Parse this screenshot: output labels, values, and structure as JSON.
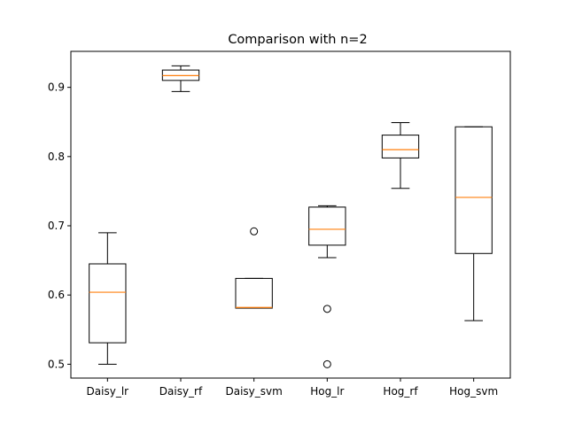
{
  "chart_data": {
    "type": "boxplot",
    "title": "Comparison with n=2",
    "xlabel": "",
    "ylabel": "",
    "categories": [
      "Daisy_lr",
      "Daisy_rf",
      "Daisy_svm",
      "Hog_lr",
      "Hog_rf",
      "Hog_svm"
    ],
    "boxes": [
      {
        "whisker_low": 0.5,
        "q1": 0.531,
        "median": 0.604,
        "q3": 0.645,
        "whisker_high": 0.69,
        "outliers": []
      },
      {
        "whisker_low": 0.894,
        "q1": 0.91,
        "median": 0.917,
        "q3": 0.925,
        "whisker_high": 0.931,
        "outliers": []
      },
      {
        "whisker_low": 0.581,
        "q1": 0.581,
        "median": 0.582,
        "q3": 0.624,
        "whisker_high": 0.624,
        "outliers": [
          0.692
        ]
      },
      {
        "whisker_low": 0.654,
        "q1": 0.672,
        "median": 0.695,
        "q3": 0.727,
        "whisker_high": 0.729,
        "outliers": [
          0.58,
          0.5
        ]
      },
      {
        "whisker_low": 0.754,
        "q1": 0.798,
        "median": 0.81,
        "q3": 0.831,
        "whisker_high": 0.849,
        "outliers": []
      },
      {
        "whisker_low": 0.563,
        "q1": 0.66,
        "median": 0.741,
        "q3": 0.843,
        "whisker_high": 0.843,
        "outliers": []
      }
    ],
    "ylim": [
      0.48,
      0.952
    ],
    "yticks": [
      0.5,
      0.6,
      0.7,
      0.8,
      0.9
    ],
    "ytick_labels": [
      "0.5",
      "0.6",
      "0.7",
      "0.8",
      "0.9"
    ],
    "grid": false,
    "colors": {
      "box": "#000000",
      "median": "#ff7f0e",
      "outlier": "#000000",
      "axes": "#000000"
    }
  }
}
